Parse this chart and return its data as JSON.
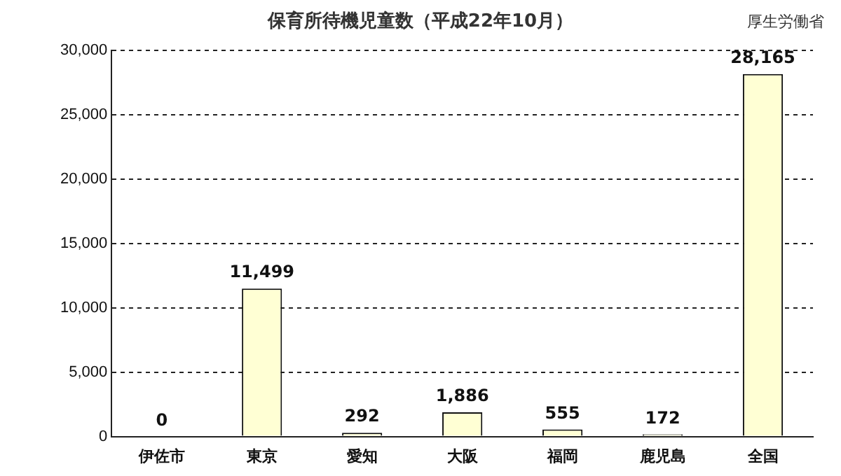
{
  "chart_data": {
    "type": "bar",
    "title": "保育所待機児童数（平成22年10月）",
    "annotations": [
      "厚生労働省"
    ],
    "categories": [
      "伊佐市",
      "東京",
      "愛知",
      "大阪",
      "福岡",
      "鹿児島",
      "全国"
    ],
    "values": [
      0,
      11499,
      292,
      1886,
      555,
      172,
      28165
    ],
    "color": "#ffffd4",
    "value_labels": [
      "0",
      "11,499",
      "292",
      "1,886",
      "555",
      "172",
      "28,165"
    ],
    "ylim": [
      0,
      30000
    ],
    "yticks": [
      0,
      {
        "value": 5000,
        "label": "5,000"
      },
      {
        "value": 10000,
        "label": "10,000"
      },
      {
        "value": 15000,
        "label": "15,000"
      },
      {
        "value": 20000,
        "label": "20,000"
      },
      {
        "value": 25000,
        "label": "25,000"
      },
      {
        "value": 30000,
        "label": "30,000"
      }
    ],
    "grid": "y",
    "legend": false
  }
}
